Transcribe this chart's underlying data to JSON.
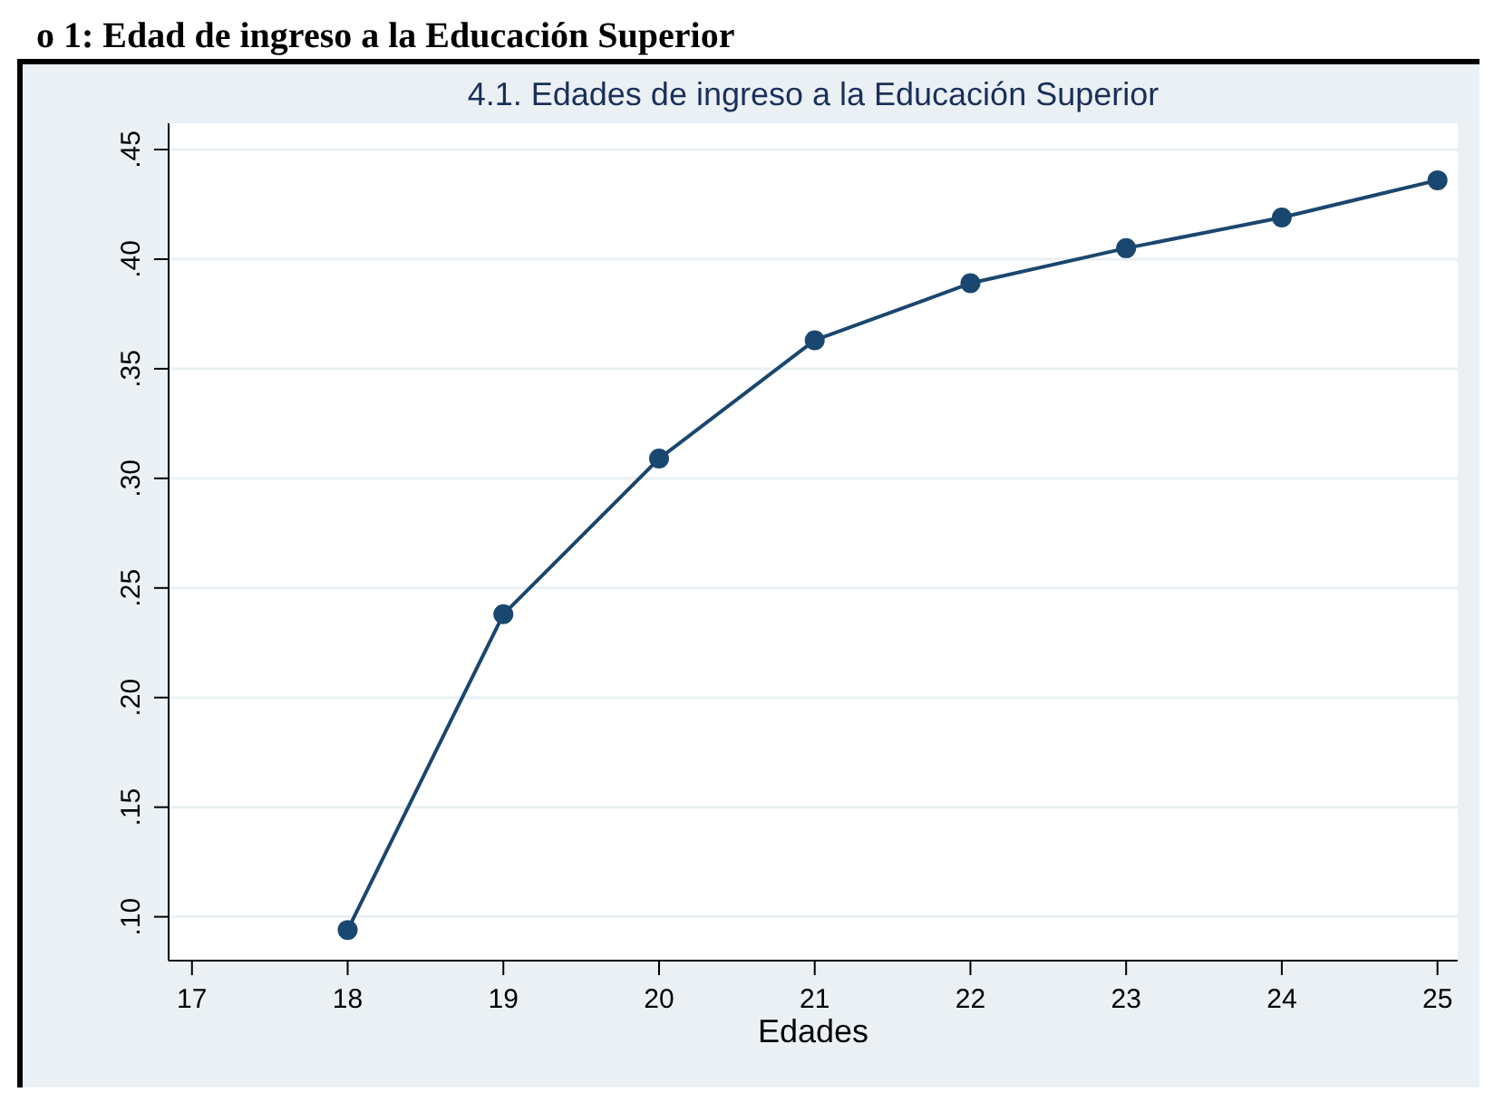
{
  "chart_data": {
    "type": "line",
    "title": "4.1. Edades de ingreso a la Educación Superior",
    "xlabel": "Edades",
    "annotations": [
      "o 1: Edad de ingreso a la Educación Superior"
    ],
    "x": [
      18,
      19,
      20,
      21,
      22,
      23,
      24,
      25
    ],
    "series": [
      {
        "color": "#1a476f",
        "values": [
          0.094,
          0.238,
          0.309,
          0.363,
          0.389,
          0.405,
          0.419,
          0.436
        ]
      }
    ],
    "xlim": [
      16.85,
      25.13
    ],
    "xticks": [
      17,
      18,
      19,
      20,
      21,
      22,
      23,
      24,
      25
    ],
    "ylim": [
      0.08,
      0.462
    ],
    "yticks": [
      {
        "value": 0.1,
        "label": ".10"
      },
      {
        "value": 0.15,
        "label": ".15"
      },
      {
        "value": 0.2,
        "label": ".20"
      },
      {
        "value": 0.25,
        "label": ".25"
      },
      {
        "value": 0.3,
        "label": ".30"
      },
      {
        "value": 0.35,
        "label": ".35"
      },
      {
        "value": 0.4,
        "label": ".40"
      },
      {
        "value": 0.45,
        "label": ".45"
      }
    ],
    "grid": "y",
    "marker": "circle"
  }
}
